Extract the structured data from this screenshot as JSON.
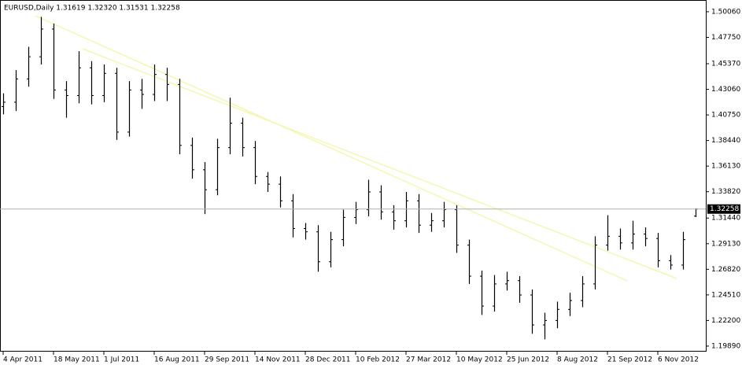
{
  "chart_data": {
    "type": "ohlc",
    "title": "EURUSD,Daily  1.31619 1.32320 1.31531 1.32258",
    "color": "#000000",
    "categories": [
      "4 Apr 2011",
      null,
      null,
      null,
      "18 May 2011",
      null,
      null,
      null,
      "1 Jul 2011",
      null,
      null,
      null,
      "16 Aug 2011",
      null,
      null,
      null,
      "29 Sep 2011",
      null,
      null,
      null,
      "14 Nov 2011",
      null,
      null,
      null,
      "28 Dec 2011",
      null,
      null,
      null,
      "10 Feb 2012",
      null,
      null,
      null,
      "27 Mar 2012",
      null,
      null,
      null,
      "10 May 2012",
      null,
      null,
      null,
      "25 Jun 2012",
      null,
      null,
      null,
      "8 Aug 2012",
      null,
      null,
      null,
      "21 Sep 2012",
      null,
      null,
      null,
      "6 Nov 2012",
      null,
      null,
      null
    ],
    "open": [
      1.415,
      1.419,
      1.44,
      1.46,
      1.485,
      1.43,
      1.425,
      1.45,
      1.425,
      1.445,
      1.392,
      1.43,
      1.426,
      1.444,
      1.435,
      1.38,
      1.358,
      1.34,
      1.378,
      1.4,
      1.378,
      1.352,
      1.345,
      1.33,
      1.305,
      1.302,
      1.275,
      1.295,
      1.315,
      1.322,
      1.338,
      1.32,
      1.312,
      1.33,
      1.308,
      1.312,
      1.322,
      1.29,
      1.262,
      1.235,
      1.255,
      1.258,
      1.245,
      1.218,
      1.222,
      1.232,
      1.24,
      1.255,
      1.29,
      1.298,
      1.292,
      1.3,
      1.296,
      1.276,
      1.272,
      1.31619
    ],
    "high": [
      1.427,
      1.448,
      1.469,
      1.496,
      1.49,
      1.438,
      1.465,
      1.456,
      1.453,
      1.45,
      1.438,
      1.44,
      1.453,
      1.45,
      1.44,
      1.387,
      1.365,
      1.386,
      1.423,
      1.405,
      1.384,
      1.356,
      1.352,
      1.336,
      1.31,
      1.308,
      1.302,
      1.322,
      1.329,
      1.349,
      1.344,
      1.326,
      1.338,
      1.336,
      1.319,
      1.329,
      1.326,
      1.295,
      1.267,
      1.263,
      1.266,
      1.262,
      1.25,
      1.229,
      1.239,
      1.247,
      1.262,
      1.298,
      1.317,
      1.305,
      1.312,
      1.306,
      1.301,
      1.281,
      1.302,
      1.3232
    ],
    "low": [
      1.408,
      1.411,
      1.433,
      1.453,
      1.422,
      1.405,
      1.418,
      1.417,
      1.419,
      1.385,
      1.388,
      1.413,
      1.42,
      1.42,
      1.372,
      1.35,
      1.318,
      1.335,
      1.372,
      1.37,
      1.345,
      1.338,
      1.324,
      1.297,
      1.295,
      1.266,
      1.27,
      1.289,
      1.309,
      1.316,
      1.313,
      1.304,
      1.306,
      1.301,
      1.302,
      1.306,
      1.283,
      1.255,
      1.227,
      1.23,
      1.249,
      1.238,
      1.21,
      1.205,
      1.215,
      1.226,
      1.234,
      1.25,
      1.285,
      1.286,
      1.286,
      1.289,
      1.27,
      1.268,
      1.268,
      1.31531
    ],
    "close": [
      1.419,
      1.44,
      1.46,
      1.485,
      1.43,
      1.425,
      1.45,
      1.425,
      1.445,
      1.392,
      1.43,
      1.426,
      1.444,
      1.435,
      1.38,
      1.358,
      1.34,
      1.378,
      1.4,
      1.378,
      1.352,
      1.345,
      1.33,
      1.305,
      1.302,
      1.275,
      1.295,
      1.315,
      1.322,
      1.338,
      1.32,
      1.312,
      1.33,
      1.308,
      1.312,
      1.322,
      1.29,
      1.262,
      1.235,
      1.255,
      1.258,
      1.245,
      1.218,
      1.222,
      1.232,
      1.24,
      1.255,
      1.29,
      1.298,
      1.292,
      1.3,
      1.296,
      1.276,
      1.272,
      1.295,
      1.32258
    ],
    "ylim": [
      1.1939,
      1.5112
    ],
    "yticks": [
      {
        "value": 1.5006,
        "label": "1.50060"
      },
      {
        "value": 1.4775,
        "label": "1.47750"
      },
      {
        "value": 1.4537,
        "label": "1.45370"
      },
      {
        "value": 1.4306,
        "label": "1.43060"
      },
      {
        "value": 1.4075,
        "label": "1.40750"
      },
      {
        "value": 1.3844,
        "label": "1.38440"
      },
      {
        "value": 1.3613,
        "label": "1.36130"
      },
      {
        "value": 1.3382,
        "label": "1.33820"
      },
      {
        "value": 1.3144,
        "label": "1.31440"
      },
      {
        "value": 1.2913,
        "label": "1.29130"
      },
      {
        "value": 1.2682,
        "label": "1.26820"
      },
      {
        "value": 1.2451,
        "label": "1.24510"
      },
      {
        "value": 1.222,
        "label": "1.22200"
      },
      {
        "value": 1.1989,
        "label": "1.19890"
      }
    ],
    "grid": false
  }
}
